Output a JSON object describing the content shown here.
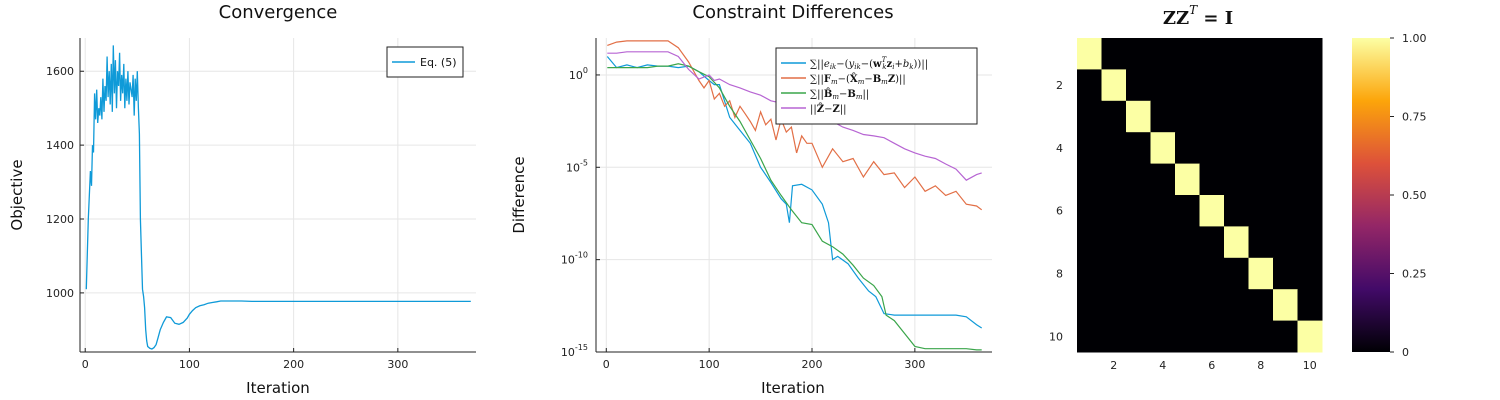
{
  "chart_data": [
    {
      "type": "line",
      "title": "Convergence",
      "xlabel": "Iteration",
      "ylabel": "Objective",
      "xlim": [
        -5,
        375
      ],
      "ylim": [
        840,
        1690
      ],
      "xticks": [
        0,
        100,
        200,
        300
      ],
      "xtick_labels": [
        "0",
        "100",
        "200",
        "300"
      ],
      "yticks": [
        1000,
        1200,
        1400,
        1600
      ],
      "ytick_labels": [
        "1000",
        "1200",
        "1400",
        "1600"
      ],
      "grid": true,
      "legend": "top-right",
      "series": [
        {
          "name": "Eq. (5)",
          "color": "#0f9ad8",
          "x": [
            1,
            3,
            5,
            6,
            7,
            8,
            9,
            10,
            11,
            12,
            13,
            14,
            15,
            16,
            17,
            18,
            19,
            20,
            21,
            22,
            23,
            24,
            25,
            26,
            27,
            28,
            29,
            30,
            31,
            32,
            33,
            34,
            35,
            36,
            37,
            38,
            39,
            40,
            41,
            42,
            43,
            44,
            45,
            46,
            47,
            48,
            49,
            50,
            51,
            52,
            53,
            54,
            55,
            56,
            57,
            58,
            59,
            60,
            62,
            64,
            66,
            68,
            70,
            72,
            75,
            78,
            82,
            86,
            90,
            94,
            98,
            100,
            103,
            106,
            110,
            114,
            118,
            122,
            126,
            130,
            140,
            150,
            160,
            170,
            180,
            200,
            250,
            300,
            370
          ],
          "values": [
            1010,
            1200,
            1330,
            1290,
            1400,
            1380,
            1540,
            1470,
            1550,
            1460,
            1500,
            1480,
            1530,
            1470,
            1580,
            1490,
            1560,
            1520,
            1640,
            1530,
            1600,
            1510,
            1620,
            1490,
            1670,
            1540,
            1630,
            1500,
            1600,
            1560,
            1650,
            1520,
            1590,
            1540,
            1620,
            1500,
            1580,
            1520,
            1600,
            1510,
            1570,
            1550,
            1530,
            1590,
            1480,
            1580,
            1520,
            1600,
            1500,
            1430,
            1200,
            1100,
            1010,
            990,
            960,
            900,
            870,
            855,
            850,
            848,
            852,
            860,
            880,
            900,
            920,
            935,
            933,
            918,
            915,
            920,
            932,
            942,
            952,
            960,
            965,
            968,
            972,
            974,
            976,
            978,
            978,
            978,
            977,
            977,
            977,
            977,
            977,
            977,
            977
          ]
        }
      ]
    },
    {
      "type": "line",
      "title": "Constraint Differences",
      "xlabel": "Iteration",
      "ylabel": "Difference",
      "yscale": "log",
      "xlim": [
        -10,
        375
      ],
      "ylim": [
        1e-15,
        100.0
      ],
      "xticks": [
        0,
        100,
        200,
        300
      ],
      "xtick_labels": [
        "0",
        "100",
        "200",
        "300"
      ],
      "yticks": [
        1,
        1e-05,
        1e-10,
        1e-15
      ],
      "ytick_base": [
        "10",
        "10",
        "10",
        "10"
      ],
      "ytick_exp": [
        "0",
        "-5",
        "-10",
        "-15"
      ],
      "grid": true,
      "legend": "top-right",
      "series": [
        {
          "name": "∑||e_ik −(y_ik −(w_k^T z_i + b_k))||",
          "color": "#0f9ad8",
          "x": [
            1,
            10,
            20,
            30,
            40,
            50,
            60,
            70,
            80,
            90,
            100,
            105,
            110,
            120,
            130,
            140,
            150,
            160,
            170,
            175,
            178,
            181,
            190,
            200,
            210,
            216,
            220,
            225,
            235,
            245,
            255,
            262,
            270,
            280,
            300,
            320,
            340,
            350,
            360,
            365
          ],
          "values": [
            10,
            2.5,
            3.5,
            2.5,
            3.5,
            3,
            3,
            2.5,
            3,
            1.5,
            0.5,
            0.3,
            0.3,
            0.005,
            0.001,
            0.0002,
            1e-05,
            1.5e-06,
            2e-07,
            1e-07,
            1e-08,
            1e-06,
            1.2e-06,
            6e-07,
            1e-07,
            1e-08,
            1e-10,
            1.5e-10,
            6e-11,
            1e-11,
            2e-12,
            1e-12,
            1.2e-13,
            1e-13,
            1e-13,
            1e-13,
            1e-13,
            8e-14,
            3e-14,
            2e-14
          ]
        },
        {
          "name": "∑||F_m −(X_m −B_m Z)||",
          "color": "#e26f46",
          "x": [
            1,
            10,
            20,
            30,
            40,
            50,
            60,
            70,
            80,
            90,
            95,
            100,
            105,
            110,
            115,
            120,
            125,
            130,
            135,
            140,
            145,
            150,
            155,
            160,
            165,
            170,
            175,
            180,
            185,
            190,
            195,
            200,
            210,
            220,
            230,
            240,
            250,
            260,
            270,
            280,
            290,
            300,
            310,
            320,
            330,
            340,
            350,
            360,
            365
          ],
          "values": [
            40,
            60,
            70,
            70,
            70,
            70,
            70,
            30,
            5,
            0.5,
            0.2,
            0.5,
            0.05,
            0.1,
            0.02,
            0.04,
            0.005,
            0.02,
            0.008,
            0.003,
            0.001,
            0.01,
            0.002,
            0.004,
            0.0003,
            0.004,
            0.0008,
            0.0015,
            6e-05,
            0.0005,
            0.0002,
            0.0002,
            1e-05,
            0.0001,
            2e-05,
            3e-05,
            3e-06,
            2e-05,
            4e-06,
            5e-06,
            8e-07,
            3e-06,
            5e-07,
            1e-06,
            3e-07,
            5e-07,
            1e-07,
            8e-08,
            5e-08
          ]
        },
        {
          "name": "∑||B̂_m −B_m||",
          "color": "#3aa54a",
          "x": [
            1,
            10,
            20,
            30,
            40,
            50,
            60,
            70,
            80,
            90,
            100,
            110,
            120,
            130,
            140,
            150,
            160,
            170,
            180,
            190,
            200,
            210,
            220,
            230,
            240,
            250,
            260,
            268,
            272,
            280,
            290,
            300,
            310,
            320,
            330,
            340,
            350,
            360,
            365
          ],
          "values": [
            2.5,
            2.5,
            2.5,
            2.5,
            2.5,
            3,
            3,
            4,
            3,
            1.5,
            0.8,
            0.2,
            0.02,
            0.003,
            0.0003,
            3e-05,
            2e-06,
            3e-07,
            5e-08,
            1e-08,
            8e-09,
            1e-09,
            5e-10,
            2e-10,
            5e-11,
            1e-11,
            4e-12,
            1e-12,
            1e-13,
            5e-14,
            1e-14,
            2e-15,
            1.5e-15,
            1.5e-15,
            1.5e-15,
            1.5e-15,
            1.5e-15,
            1.3e-15,
            1.3e-15
          ]
        },
        {
          "name": "||Ẑ −Z||",
          "color": "#b765d3",
          "x": [
            1,
            10,
            20,
            30,
            40,
            50,
            60,
            70,
            80,
            90,
            100,
            105,
            110,
            120,
            130,
            140,
            150,
            160,
            170,
            180,
            190,
            200,
            210,
            220,
            230,
            240,
            250,
            260,
            270,
            280,
            290,
            300,
            310,
            320,
            330,
            340,
            350,
            360,
            365
          ],
          "values": [
            15,
            15,
            18,
            18,
            18,
            18,
            18,
            10,
            2,
            0.6,
            1,
            0.5,
            0.6,
            0.3,
            0.2,
            0.12,
            0.08,
            0.04,
            0.03,
            0.02,
            0.008,
            0.006,
            0.004,
            0.003,
            0.0015,
            0.001,
            0.0006,
            0.0005,
            0.0004,
            0.0002,
            0.0001,
            6e-05,
            4e-05,
            3e-05,
            1.5e-05,
            8e-06,
            2e-06,
            4e-06,
            5e-06
          ]
        }
      ]
    },
    {
      "type": "heatmap",
      "title": "ZZ",
      "title_sup": "T",
      "title_rest": " = I",
      "rows": 10,
      "cols": 10,
      "values": [
        [
          1,
          0,
          0,
          0,
          0,
          0,
          0,
          0,
          0,
          0
        ],
        [
          0,
          1,
          0,
          0,
          0,
          0,
          0,
          0,
          0,
          0
        ],
        [
          0,
          0,
          1,
          0,
          0,
          0,
          0,
          0,
          0,
          0
        ],
        [
          0,
          0,
          0,
          1,
          0,
          0,
          0,
          0,
          0,
          0
        ],
        [
          0,
          0,
          0,
          0,
          1,
          0,
          0,
          0,
          0,
          0
        ],
        [
          0,
          0,
          0,
          0,
          0,
          1,
          0,
          0,
          0,
          0
        ],
        [
          0,
          0,
          0,
          0,
          0,
          0,
          1,
          0,
          0,
          0
        ],
        [
          0,
          0,
          0,
          0,
          0,
          0,
          0,
          1,
          0,
          0
        ],
        [
          0,
          0,
          0,
          0,
          0,
          0,
          0,
          0,
          1,
          0
        ],
        [
          0,
          0,
          0,
          0,
          0,
          0,
          0,
          0,
          0,
          1
        ]
      ],
      "xticks": [
        2,
        4,
        6,
        8,
        10
      ],
      "xtick_labels": [
        "2",
        "4",
        "6",
        "8",
        "10"
      ],
      "yticks": [
        2,
        4,
        6,
        8,
        10
      ],
      "ytick_labels": [
        "2",
        "4",
        "6",
        "8",
        "10"
      ],
      "colorbar": {
        "range": [
          0,
          1
        ],
        "ticks": [
          0,
          0.25,
          0.5,
          0.75,
          1
        ],
        "tick_labels": [
          "0",
          "0.25",
          "0.50",
          "0.75",
          "1.00"
        ],
        "colormap": "inferno",
        "colors": [
          "#000004",
          "#420a68",
          "#932667",
          "#dd513a",
          "#fca50a",
          "#fcffa4"
        ]
      }
    }
  ]
}
